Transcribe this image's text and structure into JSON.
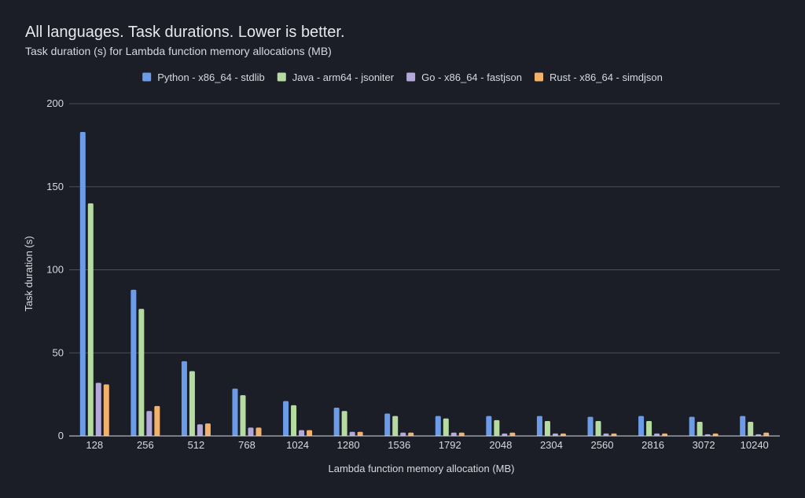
{
  "chart_data": {
    "type": "bar",
    "title": "All languages. Task durations. Lower is better.",
    "subtitle": "Task duration (s) for Lambda function memory allocations (MB)",
    "xlabel": "Lambda function memory allocation (MB)",
    "ylabel": "Task duration (s)",
    "ylim": [
      0,
      200
    ],
    "yticks": [
      "0",
      "50",
      "100",
      "150",
      "200"
    ],
    "grid": true,
    "legend_position": "top",
    "categories": [
      "128",
      "256",
      "512",
      "768",
      "1024",
      "1280",
      "1536",
      "1792",
      "2048",
      "2304",
      "2560",
      "2816",
      "3072",
      "10240"
    ],
    "series": [
      {
        "name": "Python - x86_64 - stdlib",
        "color": "#6c9be8",
        "values": [
          183,
          88,
          45,
          28.5,
          21,
          17,
          13.5,
          12,
          12,
          12,
          11.5,
          12,
          11.5,
          12
        ]
      },
      {
        "name": "Java - arm64 - jsoniter",
        "color": "#b5dba1",
        "values": [
          140,
          76.5,
          39,
          24.5,
          18.5,
          15,
          12,
          10.5,
          9.5,
          9,
          9,
          9,
          8.5,
          8.5
        ]
      },
      {
        "name": "Go - x86_64 - fastjson",
        "color": "#b3a8d9",
        "values": [
          32,
          15,
          7,
          5,
          3.5,
          2.5,
          2,
          2,
          1.5,
          1.5,
          1.5,
          1.5,
          1,
          1
        ]
      },
      {
        "name": "Rust - x86_64 - simdjson",
        "color": "#f3b26b",
        "values": [
          31,
          18,
          7.5,
          5,
          3.5,
          2.5,
          2,
          2,
          2,
          1.5,
          1.5,
          1.5,
          1.5,
          2
        ]
      }
    ]
  }
}
